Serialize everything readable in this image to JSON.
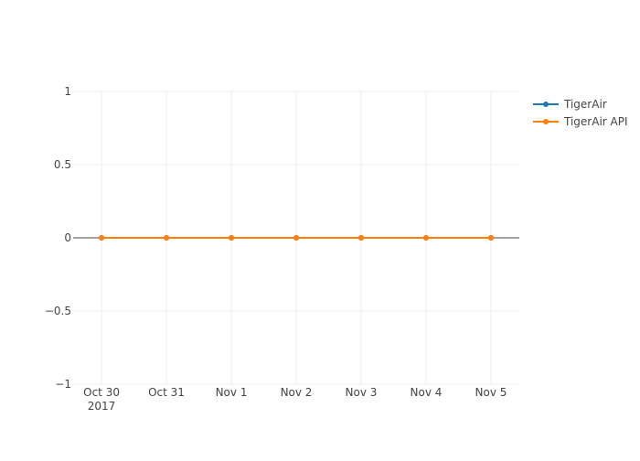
{
  "chart_data": {
    "type": "line",
    "x": [
      "2017-10-30",
      "2017-10-31",
      "2017-11-01",
      "2017-11-02",
      "2017-11-03",
      "2017-11-04",
      "2017-11-05"
    ],
    "series": [
      {
        "name": "TigerAir",
        "color": "#1f77b4",
        "values": [
          0,
          0,
          0,
          0,
          0,
          0,
          0
        ]
      },
      {
        "name": "TigerAir API",
        "color": "#ff7f0e",
        "values": [
          0,
          0,
          0,
          0,
          0,
          0,
          0
        ]
      }
    ],
    "xlim": [
      "2017-10-29T13:30",
      "2017-11-05T10:30"
    ],
    "xticks": [
      {
        "value": "2017-10-30",
        "label": "Oct 30\n2017"
      },
      {
        "value": "2017-10-31",
        "label": "Oct 31"
      },
      {
        "value": "2017-11-01",
        "label": "Nov 1"
      },
      {
        "value": "2017-11-02",
        "label": "Nov 2"
      },
      {
        "value": "2017-11-03",
        "label": "Nov 3"
      },
      {
        "value": "2017-11-04",
        "label": "Nov 4"
      },
      {
        "value": "2017-11-05",
        "label": "Nov 5"
      }
    ],
    "ylim": [
      -1,
      1
    ],
    "yticks": [
      {
        "value": -1,
        "label": "−1"
      },
      {
        "value": -0.5,
        "label": "−0.5"
      },
      0,
      0.5,
      1
    ],
    "grid": true,
    "zeroline": true,
    "legend": "top-right"
  }
}
